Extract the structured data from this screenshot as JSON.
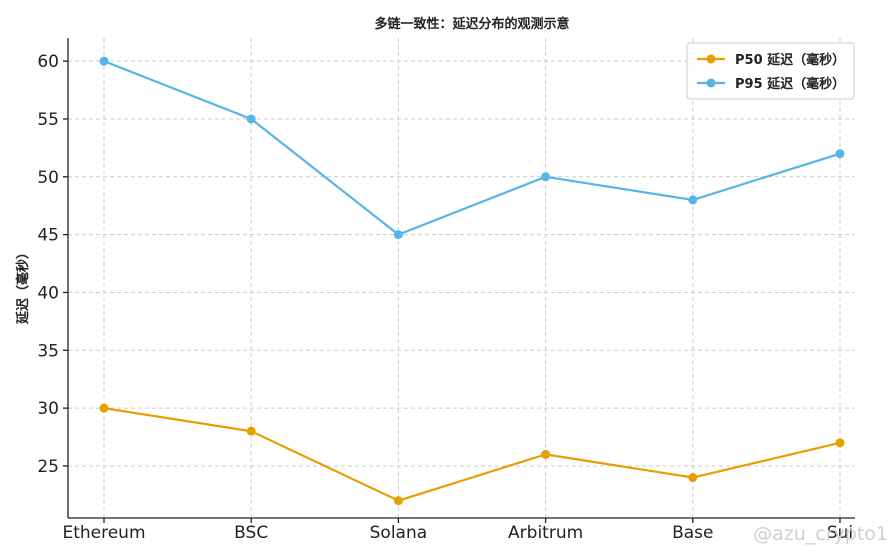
{
  "chart_data": {
    "type": "line",
    "title": "多链一致性：延迟分布的观测示意",
    "ylabel": "延迟（毫秒）",
    "xlabel": "",
    "categories": [
      "Ethereum",
      "BSC",
      "Solana",
      "Arbitrum",
      "Base",
      "Sui"
    ],
    "ylim": [
      20.5,
      62
    ],
    "yticks": [
      25,
      30,
      35,
      40,
      45,
      50,
      55,
      60
    ],
    "grid": true,
    "legend_position": "top-right",
    "series": [
      {
        "name": "P50 延迟（毫秒）",
        "color": "#E69F00",
        "values": [
          30,
          28,
          22,
          26,
          24,
          27
        ]
      },
      {
        "name": "P95 延迟（毫秒）",
        "color": "#56B4E9",
        "values": [
          60,
          55,
          45,
          50,
          48,
          52
        ]
      }
    ]
  },
  "watermark": "@azu_crypto1"
}
